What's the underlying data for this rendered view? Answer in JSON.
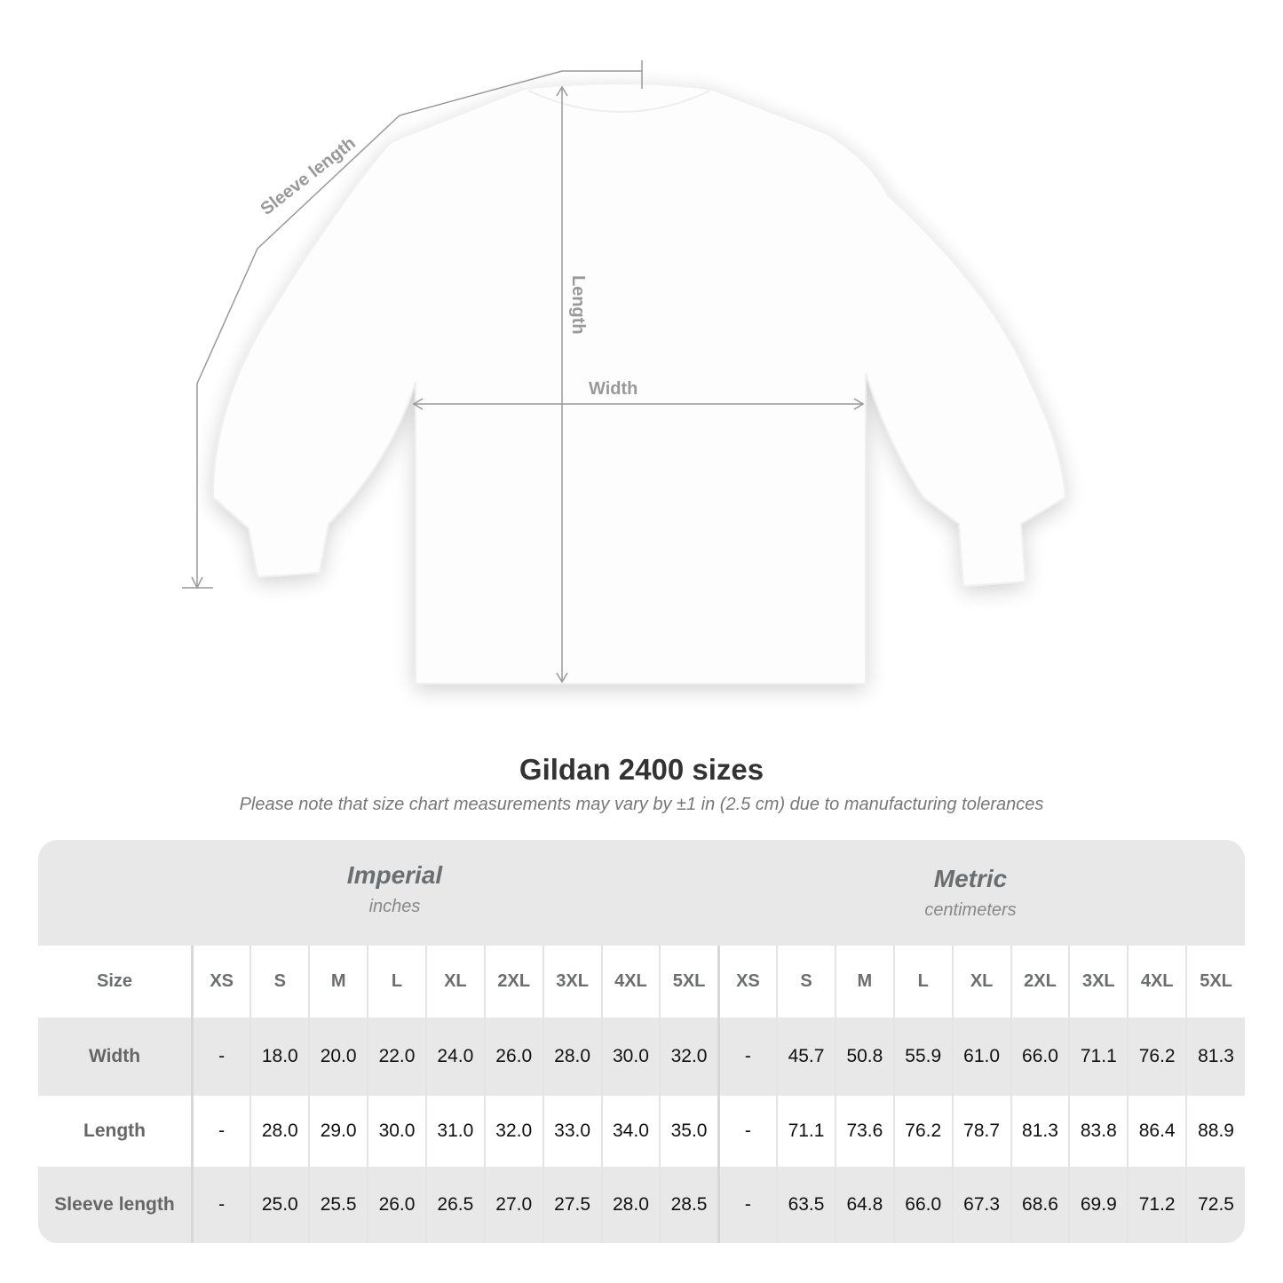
{
  "diagram": {
    "sleeve_label": "Sleeve length",
    "length_label": "Length",
    "width_label": "Width"
  },
  "title": "Gildan 2400 sizes",
  "note": "Please note that size chart measurements may vary by ±1 in (2.5 cm) due to manufacturing tolerances",
  "imperial": {
    "title": "Imperial",
    "unit": "inches"
  },
  "metric": {
    "title": "Metric",
    "unit": "centimeters"
  },
  "size_label": "Size",
  "sizes": [
    "XS",
    "S",
    "M",
    "L",
    "XL",
    "2XL",
    "3XL",
    "4XL",
    "5XL"
  ],
  "rows": [
    {
      "label": "Width",
      "imperial": [
        "-",
        "18.0",
        "20.0",
        "22.0",
        "24.0",
        "26.0",
        "28.0",
        "30.0",
        "32.0"
      ],
      "metric": [
        "-",
        "45.7",
        "50.8",
        "55.9",
        "61.0",
        "66.0",
        "71.1",
        "76.2",
        "81.3"
      ]
    },
    {
      "label": "Length",
      "imperial": [
        "-",
        "28.0",
        "29.0",
        "30.0",
        "31.0",
        "32.0",
        "33.0",
        "34.0",
        "35.0"
      ],
      "metric": [
        "-",
        "71.1",
        "73.6",
        "76.2",
        "78.7",
        "81.3",
        "83.8",
        "86.4",
        "88.9"
      ]
    },
    {
      "label": "Sleeve length",
      "imperial": [
        "-",
        "25.0",
        "25.5",
        "26.0",
        "26.5",
        "27.0",
        "27.5",
        "28.0",
        "28.5"
      ],
      "metric": [
        "-",
        "63.5",
        "64.8",
        "66.0",
        "67.3",
        "68.6",
        "69.9",
        "71.2",
        "72.5"
      ]
    }
  ]
}
